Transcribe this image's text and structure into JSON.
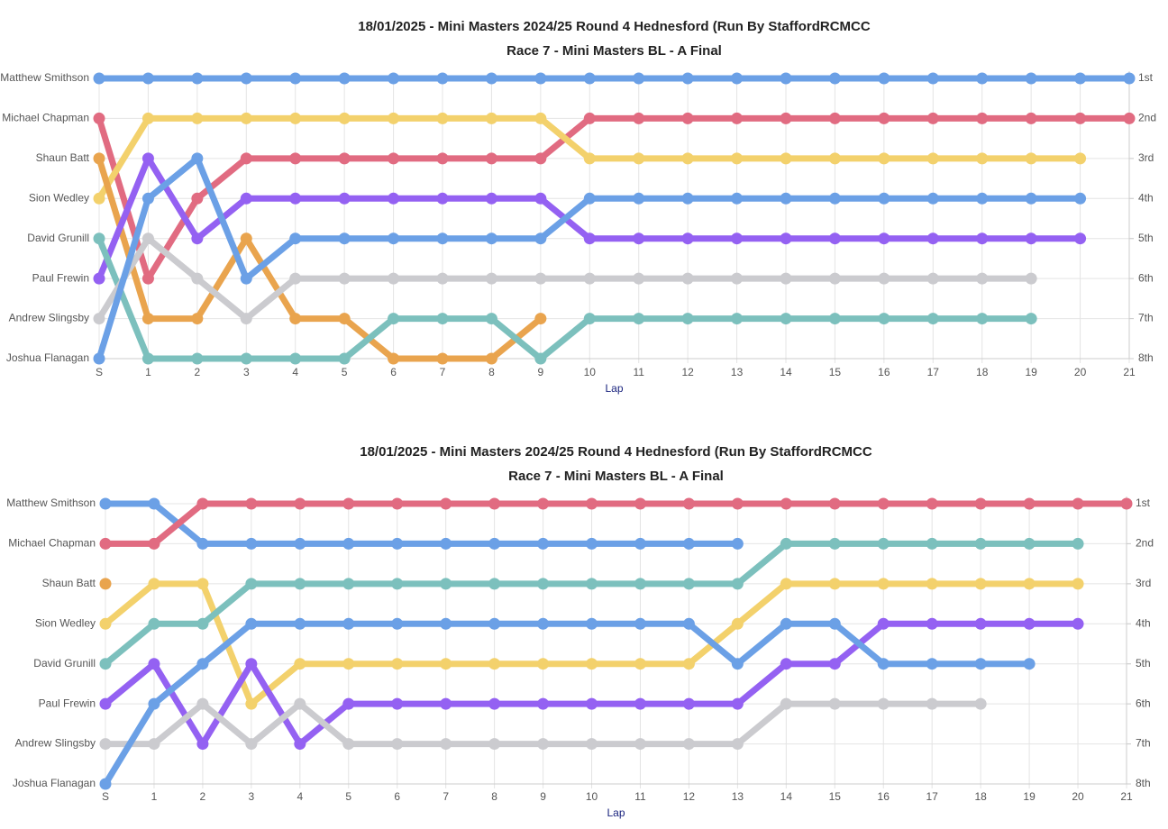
{
  "chart_data": [
    {
      "type": "line",
      "title": "18/01/2025 - Mini Masters 2024/25 Round 4 Hednesford (Run By StaffordRCMCC",
      "subtitle": "Race 7 - Mini Masters BL - A Final",
      "x_label": "Lap",
      "categories": [
        "S",
        "1",
        "2",
        "3",
        "4",
        "5",
        "6",
        "7",
        "8",
        "9",
        "10",
        "11",
        "12",
        "13",
        "14",
        "15",
        "16",
        "17",
        "18",
        "19",
        "20",
        "21"
      ],
      "ylim": [
        8,
        1
      ],
      "yticks": [
        {
          "value": 1,
          "label": "Matthew Smithson"
        },
        {
          "value": 2,
          "label": "Michael Chapman"
        },
        {
          "value": 3,
          "label": "Shaun Batt"
        },
        {
          "value": 4,
          "label": "Sion Wedley"
        },
        {
          "value": 5,
          "label": "David Grunill"
        },
        {
          "value": 6,
          "label": "Paul Frewin"
        },
        {
          "value": 7,
          "label": "Andrew Slingsby"
        },
        {
          "value": 8,
          "label": "Joshua Flanagan"
        }
      ],
      "y2lim": [
        8,
        1
      ],
      "y2ticks": [
        {
          "value": 1,
          "label": "1st"
        },
        {
          "value": 2,
          "label": "2nd"
        },
        {
          "value": 3,
          "label": "3rd"
        },
        {
          "value": 4,
          "label": "4th"
        },
        {
          "value": 5,
          "label": "5th"
        },
        {
          "value": 6,
          "label": "6th"
        },
        {
          "value": 7,
          "label": "7th"
        },
        {
          "value": 8,
          "label": "8th"
        }
      ],
      "grid": true,
      "series": [
        {
          "color": "#6ba0e6",
          "values": [
            1,
            1,
            1,
            1,
            1,
            1,
            1,
            1,
            1,
            1,
            1,
            1,
            1,
            1,
            1,
            1,
            1,
            1,
            1,
            1,
            1,
            1
          ]
        },
        {
          "color": "#e16b81",
          "values": [
            2,
            6,
            4,
            3,
            3,
            3,
            3,
            3,
            3,
            3,
            2,
            2,
            2,
            2,
            2,
            2,
            2,
            2,
            2,
            2,
            2,
            2
          ]
        },
        {
          "color": "#f3d16c",
          "values": [
            4,
            2,
            2,
            2,
            2,
            2,
            2,
            2,
            2,
            2,
            3,
            3,
            3,
            3,
            3,
            3,
            3,
            3,
            3,
            3,
            3,
            null
          ]
        },
        {
          "color": "#e9a44e",
          "values": [
            3,
            7,
            7,
            5,
            7,
            7,
            8,
            8,
            8,
            7,
            null,
            null,
            null,
            null,
            null,
            null,
            null,
            null,
            null,
            null,
            null,
            null
          ]
        },
        {
          "color": "#9461f2",
          "values": [
            6,
            3,
            5,
            4,
            4,
            4,
            4,
            4,
            4,
            4,
            5,
            5,
            5,
            5,
            5,
            5,
            5,
            5,
            5,
            5,
            5,
            null
          ]
        },
        {
          "color": "#7cc0bd",
          "values": [
            5,
            8,
            8,
            8,
            8,
            8,
            7,
            7,
            7,
            8,
            7,
            7,
            7,
            7,
            7,
            7,
            7,
            7,
            7,
            7,
            null,
            null
          ]
        },
        {
          "color": "#cbcbcf",
          "values": [
            7,
            5,
            6,
            7,
            6,
            6,
            6,
            6,
            6,
            6,
            6,
            6,
            6,
            6,
            6,
            6,
            6,
            6,
            6,
            6,
            null,
            null
          ]
        },
        {
          "color": "#6ba0e6",
          "values": [
            8,
            4,
            3,
            6,
            5,
            5,
            5,
            5,
            5,
            5,
            4,
            4,
            4,
            4,
            4,
            4,
            4,
            4,
            4,
            4,
            4,
            null
          ]
        }
      ]
    },
    {
      "type": "line",
      "title": "18/01/2025 - Mini Masters 2024/25 Round 4 Hednesford (Run By StaffordRCMCC",
      "subtitle": "Race 7 - Mini Masters BL - A Final",
      "x_label": "Lap",
      "categories": [
        "S",
        "1",
        "2",
        "3",
        "4",
        "5",
        "6",
        "7",
        "8",
        "9",
        "10",
        "11",
        "12",
        "13",
        "14",
        "15",
        "16",
        "17",
        "18",
        "19",
        "20",
        "21"
      ],
      "ylim": [
        8,
        1
      ],
      "yticks": [
        {
          "value": 1,
          "label": "Matthew Smithson"
        },
        {
          "value": 2,
          "label": "Michael Chapman"
        },
        {
          "value": 3,
          "label": "Shaun Batt"
        },
        {
          "value": 4,
          "label": "Sion Wedley"
        },
        {
          "value": 5,
          "label": "David Grunill"
        },
        {
          "value": 6,
          "label": "Paul Frewin"
        },
        {
          "value": 7,
          "label": "Andrew Slingsby"
        },
        {
          "value": 8,
          "label": "Joshua Flanagan"
        }
      ],
      "y2lim": [
        8,
        1
      ],
      "y2ticks": [
        {
          "value": 1,
          "label": "1st"
        },
        {
          "value": 2,
          "label": "2nd"
        },
        {
          "value": 3,
          "label": "3rd"
        },
        {
          "value": 4,
          "label": "4th"
        },
        {
          "value": 5,
          "label": "5th"
        },
        {
          "value": 6,
          "label": "6th"
        },
        {
          "value": 7,
          "label": "7th"
        },
        {
          "value": 8,
          "label": "8th"
        }
      ],
      "grid": true,
      "series": [
        {
          "color": "#6ba0e6",
          "values": [
            1,
            1,
            2,
            2,
            2,
            2,
            2,
            2,
            2,
            2,
            2,
            2,
            2,
            2,
            null,
            null,
            null,
            null,
            null,
            null,
            null,
            null
          ]
        },
        {
          "color": "#e16b81",
          "values": [
            2,
            2,
            1,
            1,
            1,
            1,
            1,
            1,
            1,
            1,
            1,
            1,
            1,
            1,
            1,
            1,
            1,
            1,
            1,
            1,
            1,
            1
          ]
        },
        {
          "color": "#e9a44e",
          "values": [
            3,
            null,
            null,
            null,
            null,
            null,
            null,
            null,
            null,
            null,
            null,
            null,
            null,
            null,
            null,
            null,
            null,
            null,
            null,
            null,
            null,
            null
          ]
        },
        {
          "color": "#f3d16c",
          "values": [
            4,
            3,
            3,
            6,
            5,
            5,
            5,
            5,
            5,
            5,
            5,
            5,
            5,
            4,
            3,
            3,
            3,
            3,
            3,
            3,
            3,
            null
          ]
        },
        {
          "color": "#7cc0bd",
          "values": [
            5,
            4,
            4,
            3,
            3,
            3,
            3,
            3,
            3,
            3,
            3,
            3,
            3,
            3,
            2,
            2,
            2,
            2,
            2,
            2,
            2,
            null
          ]
        },
        {
          "color": "#9461f2",
          "values": [
            6,
            5,
            7,
            5,
            7,
            6,
            6,
            6,
            6,
            6,
            6,
            6,
            6,
            6,
            5,
            5,
            4,
            4,
            4,
            4,
            4,
            null
          ]
        },
        {
          "color": "#cbcbcf",
          "values": [
            7,
            7,
            6,
            7,
            6,
            7,
            7,
            7,
            7,
            7,
            7,
            7,
            7,
            7,
            6,
            6,
            6,
            6,
            6,
            null,
            null,
            null
          ]
        },
        {
          "color": "#6ba0e6",
          "values": [
            8,
            6,
            5,
            4,
            4,
            4,
            4,
            4,
            4,
            4,
            4,
            4,
            4,
            5,
            4,
            4,
            5,
            5,
            5,
            5,
            null,
            null
          ]
        }
      ]
    }
  ]
}
